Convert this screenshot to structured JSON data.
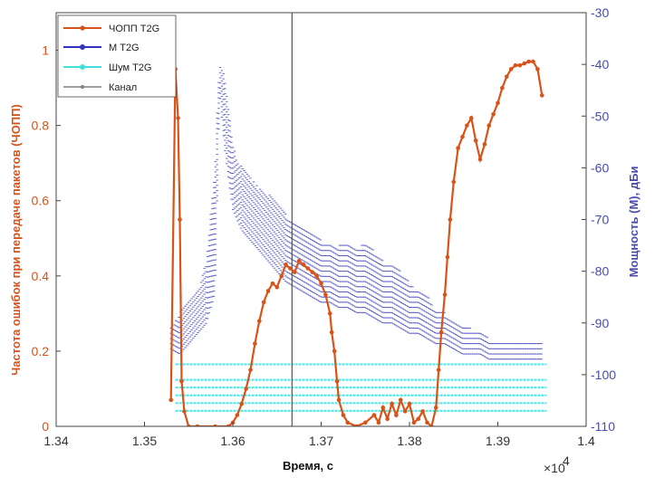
{
  "chart_data": {
    "type": "line",
    "x_range": [
      1.34,
      1.4
    ],
    "x_ticks": [
      "1.34",
      "1.35",
      "1.36",
      "1.37",
      "1.38",
      "1.39",
      "1.4"
    ],
    "x_exponent_base": "×10",
    "x_exponent_power": "4",
    "xlabel": "Время, с",
    "y_left": {
      "range": [
        0,
        1.1
      ],
      "ticks": [
        "0",
        "0.2",
        "0.4",
        "0.6",
        "0.8",
        "1"
      ],
      "label": "Частота ошибок при передаче пакетов (ЧОПП)",
      "color": "#D95319"
    },
    "y_right": {
      "range": [
        -110,
        -30
      ],
      "ticks": [
        "-110",
        "-100",
        "-90",
        "-80",
        "-70",
        "-60",
        "-50",
        "-40",
        "-30"
      ],
      "label": "Мощность (М), дБи",
      "color": "#4B4BB0"
    },
    "vertical_line_x": 1.3667,
    "series": [
      {
        "name": "ЧОПП Т2G",
        "axis": "left",
        "color": "#D95319",
        "style": "line-dots",
        "points": [
          [
            1.353,
            0.07
          ],
          [
            1.3535,
            0.95
          ],
          [
            1.3538,
            0.82
          ],
          [
            1.354,
            0.55
          ],
          [
            1.3542,
            0.12
          ],
          [
            1.3545,
            0.04
          ],
          [
            1.355,
            0.0
          ],
          [
            1.356,
            0.0
          ],
          [
            1.358,
            0.0
          ],
          [
            1.3595,
            0.0
          ],
          [
            1.36,
            0.01
          ],
          [
            1.3605,
            0.03
          ],
          [
            1.361,
            0.06
          ],
          [
            1.3615,
            0.1
          ],
          [
            1.362,
            0.15
          ],
          [
            1.3625,
            0.22
          ],
          [
            1.363,
            0.28
          ],
          [
            1.3635,
            0.33
          ],
          [
            1.364,
            0.36
          ],
          [
            1.3645,
            0.38
          ],
          [
            1.365,
            0.37
          ],
          [
            1.3655,
            0.4
          ],
          [
            1.366,
            0.43
          ],
          [
            1.3665,
            0.42
          ],
          [
            1.367,
            0.41
          ],
          [
            1.3675,
            0.44
          ],
          [
            1.368,
            0.43
          ],
          [
            1.3685,
            0.42
          ],
          [
            1.369,
            0.41
          ],
          [
            1.3695,
            0.4
          ],
          [
            1.37,
            0.38
          ],
          [
            1.3705,
            0.35
          ],
          [
            1.371,
            0.3
          ],
          [
            1.3712,
            0.25
          ],
          [
            1.3715,
            0.2
          ],
          [
            1.3718,
            0.12
          ],
          [
            1.372,
            0.07
          ],
          [
            1.3725,
            0.03
          ],
          [
            1.373,
            0.01
          ],
          [
            1.374,
            0.0
          ],
          [
            1.375,
            0.01
          ],
          [
            1.376,
            0.03
          ],
          [
            1.3765,
            0.01
          ],
          [
            1.377,
            0.05
          ],
          [
            1.3775,
            0.02
          ],
          [
            1.378,
            0.06
          ],
          [
            1.3785,
            0.03
          ],
          [
            1.379,
            0.07
          ],
          [
            1.3795,
            0.04
          ],
          [
            1.38,
            0.06
          ],
          [
            1.3805,
            0.01
          ],
          [
            1.381,
            0.02
          ],
          [
            1.3815,
            0.04
          ],
          [
            1.382,
            0.01
          ],
          [
            1.3825,
            0.0
          ],
          [
            1.383,
            0.05
          ],
          [
            1.3833,
            0.15
          ],
          [
            1.3836,
            0.25
          ],
          [
            1.384,
            0.35
          ],
          [
            1.3843,
            0.45
          ],
          [
            1.3846,
            0.55
          ],
          [
            1.385,
            0.65
          ],
          [
            1.3855,
            0.74
          ],
          [
            1.386,
            0.77
          ],
          [
            1.3865,
            0.8
          ],
          [
            1.387,
            0.82
          ],
          [
            1.3875,
            0.76
          ],
          [
            1.388,
            0.71
          ],
          [
            1.3885,
            0.75
          ],
          [
            1.389,
            0.8
          ],
          [
            1.3895,
            0.83
          ],
          [
            1.39,
            0.86
          ],
          [
            1.3905,
            0.9
          ],
          [
            1.391,
            0.93
          ],
          [
            1.3915,
            0.95
          ],
          [
            1.392,
            0.96
          ],
          [
            1.3925,
            0.96
          ],
          [
            1.393,
            0.965
          ],
          [
            1.3935,
            0.97
          ],
          [
            1.394,
            0.97
          ],
          [
            1.3945,
            0.95
          ],
          [
            1.395,
            0.88
          ]
        ]
      },
      {
        "name": "М Т2G",
        "axis": "right",
        "color": "#3333BB",
        "style": "band",
        "band": [
          [
            1.353,
            -95,
            -91
          ],
          [
            1.354,
            -96,
            -88
          ],
          [
            1.355,
            -94,
            -86
          ],
          [
            1.356,
            -92,
            -84
          ],
          [
            1.357,
            -90,
            -78
          ],
          [
            1.358,
            -84,
            -60
          ],
          [
            1.3583,
            -60,
            -45
          ],
          [
            1.3585,
            -45,
            -40
          ],
          [
            1.359,
            -55,
            -42
          ],
          [
            1.3595,
            -62,
            -48
          ],
          [
            1.36,
            -68,
            -56
          ],
          [
            1.361,
            -72,
            -60
          ],
          [
            1.362,
            -74,
            -62
          ],
          [
            1.363,
            -76,
            -64
          ],
          [
            1.364,
            -78,
            -65
          ],
          [
            1.365,
            -80,
            -67
          ],
          [
            1.366,
            -82,
            -69
          ],
          [
            1.367,
            -83,
            -71
          ],
          [
            1.368,
            -84,
            -72
          ],
          [
            1.369,
            -85,
            -73
          ],
          [
            1.37,
            -86,
            -74
          ],
          [
            1.371,
            -86,
            -75
          ],
          [
            1.372,
            -87,
            -75
          ],
          [
            1.373,
            -87,
            -74
          ],
          [
            1.374,
            -88,
            -76
          ],
          [
            1.375,
            -88,
            -74
          ],
          [
            1.376,
            -89,
            -76
          ],
          [
            1.377,
            -90,
            -78
          ],
          [
            1.378,
            -90,
            -79
          ],
          [
            1.379,
            -91,
            -80
          ],
          [
            1.38,
            -92,
            -82
          ],
          [
            1.381,
            -92,
            -84
          ],
          [
            1.382,
            -93,
            -84
          ],
          [
            1.383,
            -94,
            -88
          ],
          [
            1.384,
            -94,
            -88
          ],
          [
            1.385,
            -95,
            -90
          ],
          [
            1.386,
            -96,
            -91
          ],
          [
            1.387,
            -96,
            -91
          ],
          [
            1.388,
            -96,
            -92
          ],
          [
            1.389,
            -97,
            -93
          ],
          [
            1.39,
            -97,
            -94
          ],
          [
            1.391,
            -97,
            -94
          ],
          [
            1.392,
            -97,
            -94
          ],
          [
            1.393,
            -97,
            -94
          ],
          [
            1.394,
            -97,
            -94
          ],
          [
            1.395,
            -97,
            -94
          ]
        ]
      },
      {
        "name": "Шум Т2G",
        "axis": "right",
        "color": "#40E0E0",
        "style": "hlines",
        "x_from": 1.3535,
        "x_to": 1.3955,
        "levels": [
          -98,
          -101,
          -102.5,
          -104,
          -105.5,
          -107
        ]
      },
      {
        "name": "Канал",
        "axis": "left",
        "color": "#7F7F7F",
        "style": "markers",
        "points": []
      }
    ]
  }
}
